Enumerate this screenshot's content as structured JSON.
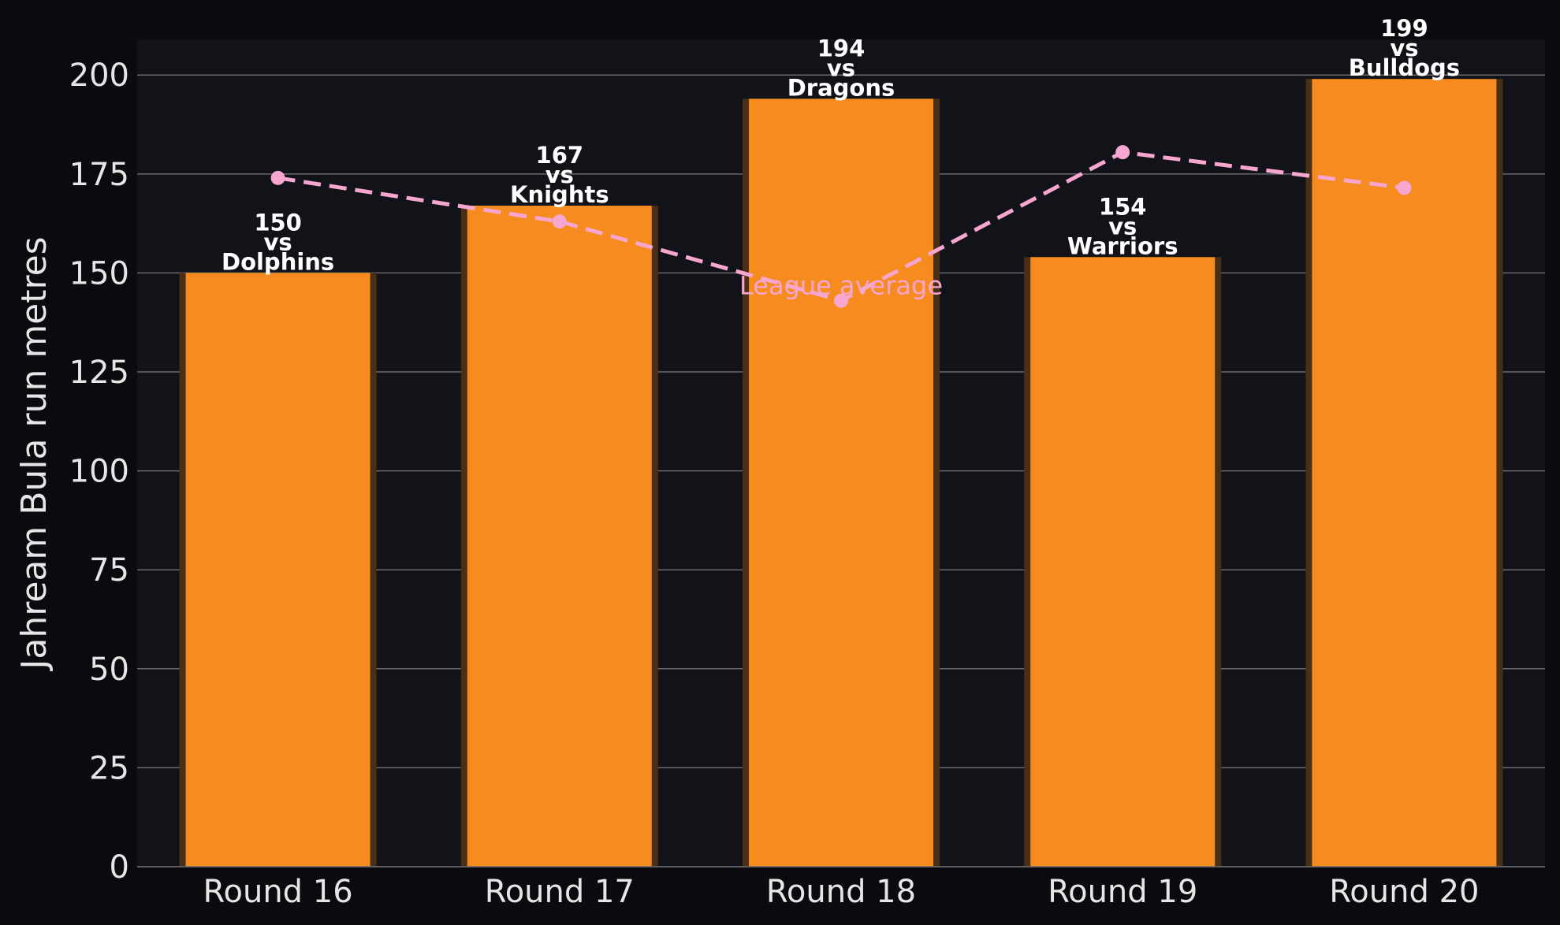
{
  "chart_data": {
    "type": "bar",
    "categories": [
      "Round 16",
      "Round 17",
      "Round 18",
      "Round 19",
      "Round 20"
    ],
    "values": [
      150,
      167,
      194,
      154,
      199
    ],
    "bar_labels": [
      [
        "150",
        "vs",
        "Dolphins"
      ],
      [
        "167",
        "vs",
        "Knights"
      ],
      [
        "194",
        "vs",
        "Dragons"
      ],
      [
        "154",
        "vs",
        "Warriors"
      ],
      [
        "199",
        "vs",
        "Bulldogs"
      ]
    ],
    "ylabel": "Jahream Bula run metres",
    "ylim": [
      0,
      209
    ],
    "yticks": [
      0,
      25,
      50,
      75,
      100,
      125,
      150,
      175,
      200
    ],
    "grid": true,
    "overlay": {
      "type": "line",
      "style": "dashed",
      "label": "League average",
      "values": [
        174,
        163,
        143,
        180.5,
        171.5
      ]
    },
    "colors": {
      "bar": "#f68b1f",
      "bar_shadow": "#4a2f16",
      "line": "#f7a6d0",
      "background": "#121219",
      "figure_background": "#0b0b0f",
      "grid": "#6a6a70",
      "text": "#e6e6e6"
    }
  }
}
